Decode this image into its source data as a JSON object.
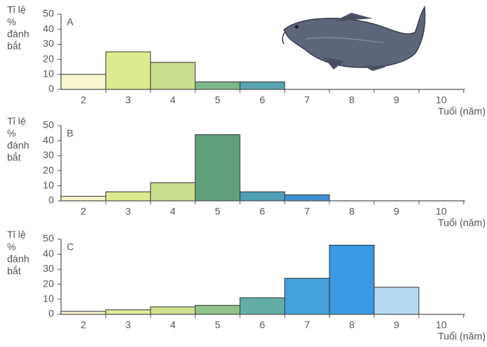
{
  "chart_data": [
    {
      "type": "bar",
      "label": "A",
      "ylabel": [
        "Tỉ lệ",
        "%",
        "đánh",
        "bắt"
      ],
      "xlabel": "Tuổi (năm)",
      "categories": [
        "2",
        "3",
        "4",
        "5",
        "6",
        "7",
        "8",
        "9",
        "10"
      ],
      "values": [
        10,
        25,
        18,
        5,
        5,
        0,
        0,
        0,
        0
      ],
      "colors": [
        "#f7f5cc",
        "#dde98f",
        "#c9dd8e",
        "#7fb58a",
        "#5ba3ae",
        "#4a94c9",
        "#4a94c9",
        "#a9d0ee",
        "#a9d0ee"
      ],
      "ylim": [
        0,
        50
      ],
      "yticks": [
        0,
        10,
        20,
        30,
        40,
        50
      ]
    },
    {
      "type": "bar",
      "label": "B",
      "ylabel": [
        "Tỉ lệ",
        "%",
        "đánh",
        "bắt"
      ],
      "xlabel": "Tuổi (năm)",
      "categories": [
        "2",
        "3",
        "4",
        "5",
        "6",
        "7",
        "8",
        "9",
        "10"
      ],
      "values": [
        3,
        6,
        12,
        44,
        6,
        4,
        0,
        0,
        0
      ],
      "colors": [
        "#f7f5cc",
        "#dde98f",
        "#c9dd8e",
        "#5f9f7c",
        "#4e9eb5",
        "#3f8fd2",
        "#4a94c9",
        "#a9d0ee",
        "#a9d0ee"
      ],
      "ylim": [
        0,
        50
      ],
      "yticks": [
        0,
        10,
        20,
        30,
        40,
        50
      ]
    },
    {
      "type": "bar",
      "label": "C",
      "ylabel": [
        "Tỉ lệ",
        "%",
        "đánh",
        "bắt"
      ],
      "xlabel": "Tuổi (năm)",
      "categories": [
        "2",
        "3",
        "4",
        "5",
        "6",
        "7",
        "8",
        "9",
        "10"
      ],
      "values": [
        2,
        3,
        5,
        6,
        11,
        24,
        46,
        18,
        0
      ],
      "colors": [
        "#f7f5cc",
        "#e3ec9e",
        "#cfe08f",
        "#92c38c",
        "#62aea5",
        "#44a0d8",
        "#3b98e2",
        "#b3d8f4",
        "#ffffff"
      ],
      "ylim": [
        0,
        50
      ],
      "yticks": [
        0,
        10,
        20,
        30,
        40,
        50
      ]
    }
  ]
}
